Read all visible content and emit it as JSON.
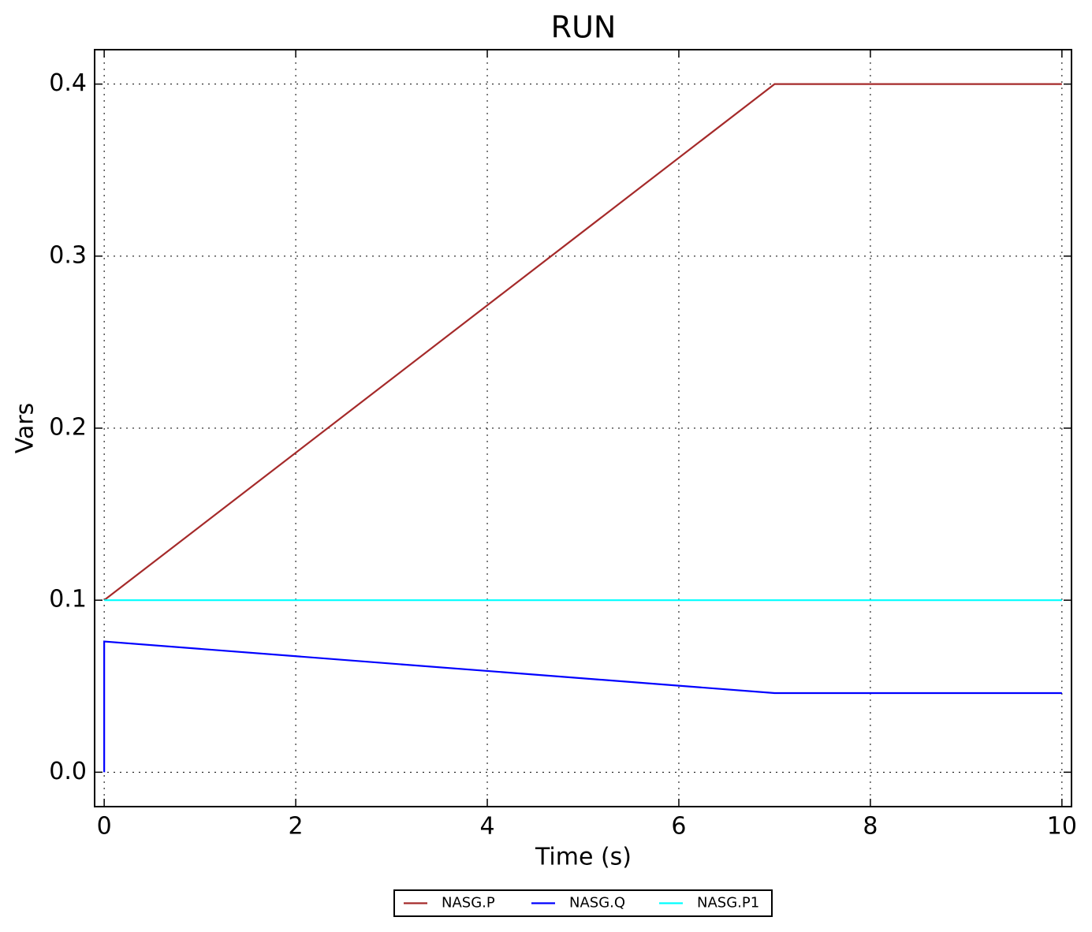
{
  "chart_data": {
    "type": "line",
    "title": "RUN",
    "x_label": "Time (s)",
    "y_label": "Vars",
    "series": [
      {
        "name": "NASG.P",
        "color": "#a52a2a",
        "x": [
          0,
          7,
          10
        ],
        "values": [
          0.1,
          0.4,
          0.4
        ]
      },
      {
        "name": "NASG.Q",
        "color": "#0000ff",
        "x": [
          0,
          0,
          7,
          10
        ],
        "values": [
          0,
          0.076,
          0.046,
          0.046
        ]
      },
      {
        "name": "NASG.P1",
        "color": "#00ffff",
        "x": [
          0,
          10
        ],
        "values": [
          0.1,
          0.1
        ]
      }
    ],
    "xlim": [
      -0.1,
      10.1
    ],
    "ylim": [
      -0.02,
      0.42
    ],
    "xticks": [
      0,
      2,
      4,
      6,
      8,
      10
    ],
    "yticks": [
      {
        "value": 0,
        "label": "0.0"
      },
      0.1,
      0.2,
      0.3,
      0.4
    ],
    "grid": true,
    "legend": "bottom"
  }
}
